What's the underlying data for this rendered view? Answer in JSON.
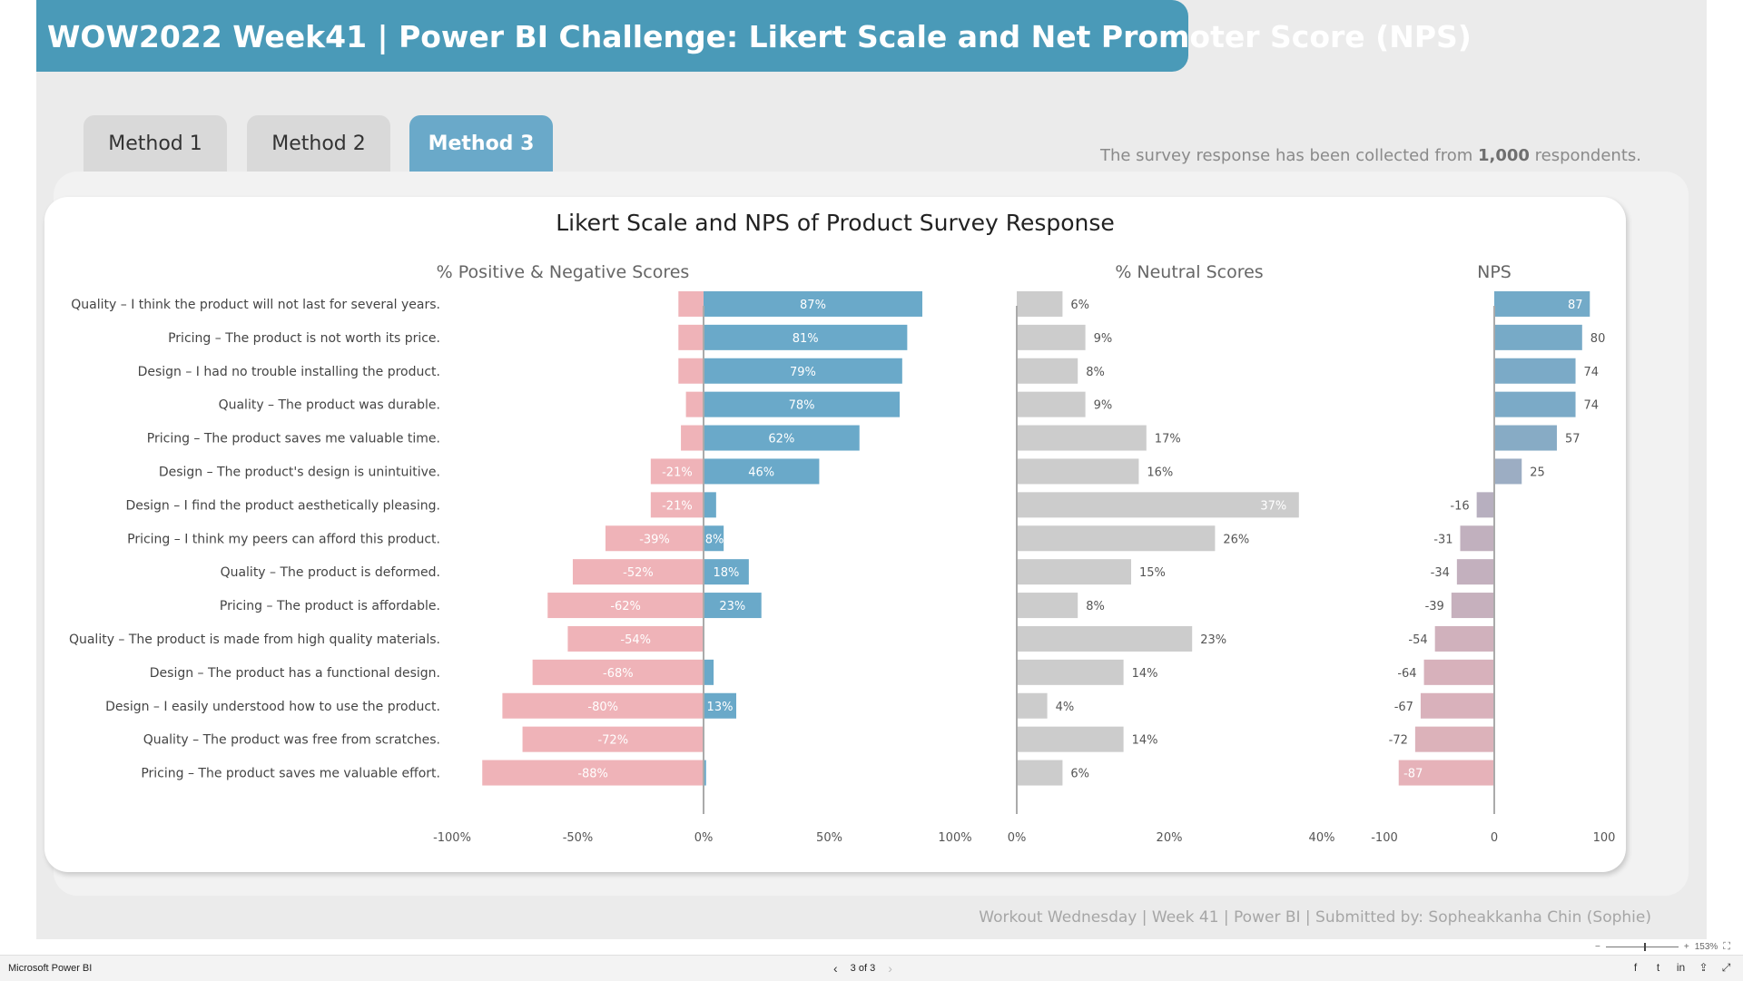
{
  "header": {
    "title": "WOW2022 Week41 | Power BI Challenge: Likert Scale and Net Promoter Score (NPS)"
  },
  "tabs": [
    {
      "label": "Method 1",
      "active": false
    },
    {
      "label": "Method 2",
      "active": false
    },
    {
      "label": "Method 3",
      "active": true
    }
  ],
  "survey_note": {
    "prefix": "The survey response has been collected from ",
    "count": "1,000",
    "suffix": " respondents."
  },
  "footer": {
    "credit": "Workout Wednesday | Week 41 | Power BI | Submitted by: Sopheakkanha Chin (Sophie)"
  },
  "status_bar": {
    "app_name": "Microsoft Power BI",
    "page_indicator": "3 of 3",
    "zoom": "153%"
  },
  "icons": {
    "prev_page": "chevron-left-icon",
    "next_page": "chevron-right-icon",
    "fit": "fit-to-page-icon",
    "facebook": "facebook-icon",
    "twitter": "twitter-icon",
    "linkedin": "linkedin-icon",
    "share": "share-icon",
    "expand": "expand-icon"
  },
  "colors": {
    "banner": "#4a9ab8",
    "positive": "#6aa9c9",
    "negative": "#efb3b8",
    "neutral": "#cccccc",
    "active_tab": "#6aa9c9"
  },
  "chart_data": {
    "title": "Likert Scale and NPS of Product Survey Response",
    "type": "bar",
    "categories": [
      "Quality – I think the product will not last for several years.",
      "Pricing – The product is not worth its price.",
      "Design – I had no trouble installing the product.",
      "Quality – The product was durable.",
      "Pricing – The product saves me valuable time.",
      "Design – The product's design is unintuitive.",
      "Design – I find the product aesthetically pleasing.",
      "Pricing – I think my peers can afford this product.",
      "Quality – The product is deformed.",
      "Pricing – The product is affordable.",
      "Quality – The product is made from high quality materials.",
      "Design – The product has a functional design.",
      "Design – I easily understood how to use the product.",
      "Quality – The product was free from scratches.",
      "Pricing – The product saves me valuable effort."
    ],
    "panels": [
      {
        "title": "% Positive & Negative Scores",
        "xlim": [
          -100,
          100
        ],
        "ticks": [
          "-100%",
          "-50%",
          "0%",
          "50%",
          "100%"
        ],
        "tick_values": [
          -100,
          -50,
          0,
          50,
          100
        ],
        "series": [
          {
            "name": "Negative",
            "values": [
              -10,
              -10,
              -10,
              -7,
              -9,
              -21,
              -21,
              -39,
              -52,
              -62,
              -54,
              -68,
              -80,
              -72,
              -88
            ],
            "labels": [
              "",
              "",
              "",
              "",
              "",
              "-21%",
              "-21%",
              "-39%",
              "-52%",
              "-62%",
              "-54%",
              "-68%",
              "-80%",
              "-72%",
              "-88%"
            ]
          },
          {
            "name": "Positive",
            "values": [
              87,
              81,
              79,
              78,
              62,
              46,
              5,
              8,
              18,
              23,
              0,
              4,
              13,
              0,
              1
            ],
            "labels": [
              "87%",
              "81%",
              "79%",
              "78%",
              "62%",
              "46%",
              "",
              "8%",
              "18%",
              "23%",
              "",
              "",
              "13%",
              "",
              ""
            ]
          }
        ]
      },
      {
        "title": "% Neutral Scores",
        "xlim": [
          0,
          40
        ],
        "ticks": [
          "0%",
          "20%",
          "40%"
        ],
        "tick_values": [
          0,
          20,
          40
        ],
        "values": [
          6,
          9,
          8,
          9,
          17,
          16,
          37,
          26,
          15,
          8,
          23,
          14,
          4,
          14,
          6
        ],
        "labels": [
          "6%",
          "9%",
          "8%",
          "9%",
          "17%",
          "16%",
          "37%",
          "26%",
          "15%",
          "8%",
          "23%",
          "14%",
          "4%",
          "14%",
          "6%"
        ]
      },
      {
        "title": "NPS",
        "xlim": [
          -100,
          100
        ],
        "ticks": [
          "-100",
          "0",
          "100"
        ],
        "tick_values": [
          -100,
          0,
          100
        ],
        "values": [
          87,
          80,
          74,
          74,
          57,
          25,
          -16,
          -31,
          -34,
          -39,
          -54,
          -64,
          -67,
          -72,
          -87
        ],
        "labels": [
          "87",
          "80",
          "74",
          "74",
          "57",
          "25",
          "-16",
          "-31",
          "-34",
          "-39",
          "-54",
          "-64",
          "-67",
          "-72",
          "-87"
        ]
      }
    ]
  }
}
